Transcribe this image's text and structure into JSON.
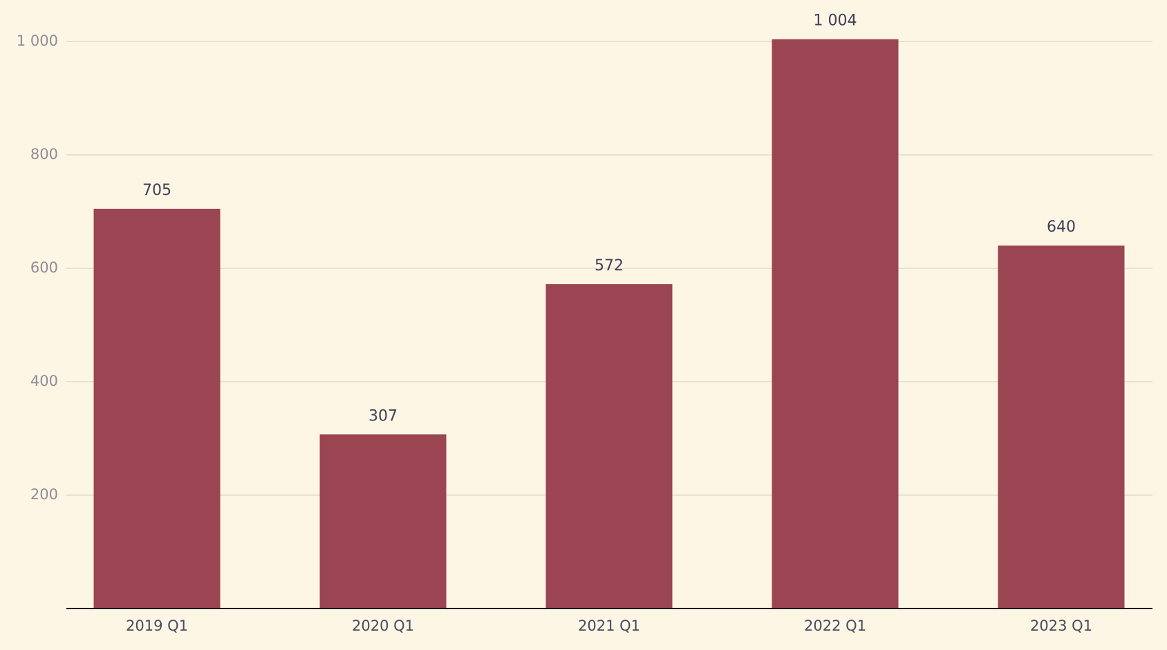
{
  "chart_data": {
    "type": "bar",
    "categories": [
      "2019 Q1",
      "2020 Q1",
      "2021 Q1",
      "2022 Q1",
      "2023 Q1"
    ],
    "values": [
      705,
      307,
      572,
      1004,
      640
    ],
    "value_labels": [
      "705",
      "307",
      "572",
      "1 004",
      "640"
    ],
    "color": "#9b4552",
    "ylim": [
      0,
      1000
    ],
    "yticks": [
      200,
      400,
      600,
      800,
      {
        "value": 1000,
        "label": "1 000"
      }
    ],
    "grid": true
  }
}
